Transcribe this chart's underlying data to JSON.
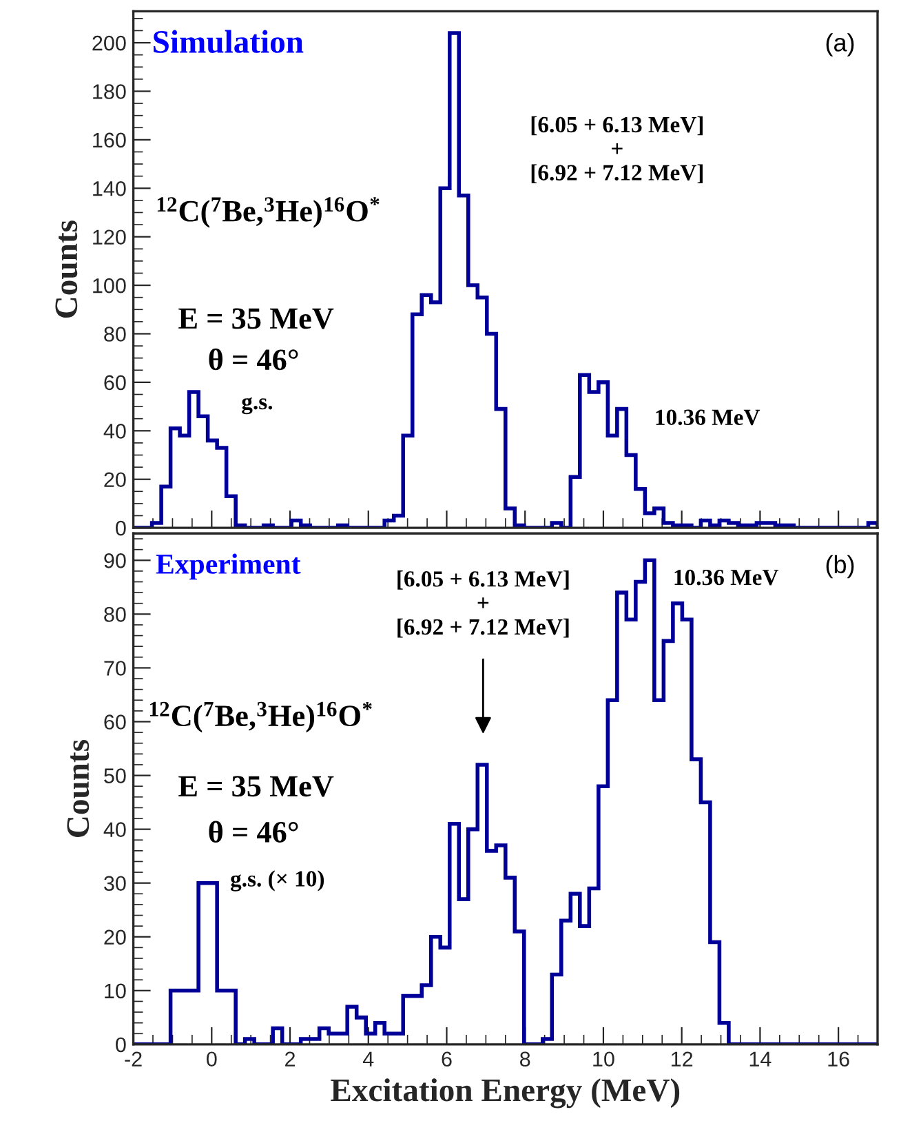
{
  "chart_data": [
    {
      "type": "histogram",
      "ylabel": "Counts",
      "bins": [
        -2,
        -1.7625,
        -1.525,
        -1.2875,
        -1.05,
        -0.8125,
        -0.575,
        -0.3375,
        -0.1,
        0.1375,
        0.375,
        0.6125,
        0.85,
        1.0875,
        1.325,
        1.5625,
        1.8,
        2.0375,
        2.275,
        2.5125,
        2.75,
        2.9875,
        3.225,
        3.4625,
        3.7,
        3.9375,
        4.175,
        4.4125,
        4.65,
        4.8875,
        5.125,
        5.3625,
        5.6,
        5.8375,
        6.075,
        6.3125,
        6.55,
        6.7875,
        7.025,
        7.2625,
        7.5,
        7.7375,
        7.975,
        8.2125,
        8.45,
        8.6875,
        8.925,
        9.1625,
        9.4,
        9.6375,
        9.875,
        10.1125,
        10.35,
        10.5875,
        10.825,
        11.0625,
        11.3,
        11.5375,
        11.775,
        12.0125,
        12.25,
        12.4875,
        12.725,
        12.9625,
        13.2,
        13.4375,
        13.675,
        13.9125,
        14.15,
        14.3875,
        14.625,
        14.8625,
        15.1,
        15.3375,
        15.575,
        15.8125,
        16.05,
        16.2875,
        16.525,
        16.7625,
        17
      ],
      "values": [
        0,
        0,
        2,
        17,
        41,
        38,
        56,
        46,
        36,
        33,
        13,
        1,
        0,
        0,
        1,
        0,
        0,
        3,
        1,
        0,
        0,
        0,
        1,
        0,
        0,
        0,
        0,
        3,
        5,
        38,
        88,
        96,
        93,
        140,
        204,
        137,
        100,
        95,
        80,
        49,
        8,
        1,
        0,
        0,
        0,
        2,
        0,
        21,
        63,
        56,
        60,
        38,
        49,
        30,
        16,
        6,
        8,
        2,
        1,
        1,
        0,
        3,
        1,
        3,
        2,
        1,
        1,
        2,
        2,
        1,
        1,
        0,
        0,
        0,
        0,
        0,
        0,
        0,
        0,
        2
      ],
      "color": "#000099",
      "xlim": [
        -2,
        17
      ],
      "xticks": [
        -2,
        0,
        2,
        4,
        6,
        8,
        10,
        12,
        14,
        16
      ],
      "ylim": [
        0,
        213
      ],
      "yticks": [
        0,
        20,
        40,
        60,
        80,
        100,
        120,
        140,
        160,
        180,
        200
      ],
      "tick_labels": "y",
      "grid": false,
      "legend": false,
      "annotations": [
        "Simulation",
        "(a)",
        "$^{12}$C($^{7}$Be,$^{3}$He)$^{16}$O$^{*}$",
        "E = 35 MeV",
        "θ = 46°",
        "g.s.",
        "[6.05 + 6.13 MeV]\n+\n[6.92 + 7.12 MeV]",
        "10.36 MeV"
      ]
    },
    {
      "type": "histogram",
      "ylabel": "Counts",
      "xlabel": "Excitation Energy (MeV)",
      "bins": [
        -2,
        -1.7625,
        -1.525,
        -1.2875,
        -1.05,
        -0.8125,
        -0.575,
        -0.3375,
        -0.1,
        0.1375,
        0.375,
        0.6125,
        0.85,
        1.0875,
        1.325,
        1.5625,
        1.8,
        2.0375,
        2.275,
        2.5125,
        2.75,
        2.9875,
        3.225,
        3.4625,
        3.7,
        3.9375,
        4.175,
        4.4125,
        4.65,
        4.8875,
        5.125,
        5.3625,
        5.6,
        5.8375,
        6.075,
        6.3125,
        6.55,
        6.7875,
        7.025,
        7.2625,
        7.5,
        7.7375,
        7.975,
        8.2125,
        8.45,
        8.6875,
        8.925,
        9.1625,
        9.4,
        9.6375,
        9.875,
        10.1125,
        10.35,
        10.5875,
        10.825,
        11.0625,
        11.3,
        11.5375,
        11.775,
        12.0125,
        12.25,
        12.4875,
        12.725,
        12.9625,
        13.2,
        13.4375,
        13.675,
        13.9125,
        14.15,
        14.3875,
        14.625,
        14.8625,
        15.1,
        15.3375,
        15.575,
        15.8125,
        16.05,
        16.2875,
        16.525,
        16.7625,
        17
      ],
      "values": [
        0,
        0,
        0,
        0,
        10,
        10,
        10,
        30,
        30,
        10,
        10,
        0,
        1,
        0,
        0,
        3,
        0,
        0,
        1,
        1,
        3,
        2,
        2,
        7,
        5,
        2,
        4,
        2,
        2,
        9,
        9,
        11,
        20,
        18,
        41,
        27,
        40,
        52,
        36,
        37,
        31,
        21,
        0,
        0,
        1,
        13,
        23,
        28,
        22,
        29,
        48,
        64,
        84,
        79,
        86,
        90,
        64,
        75,
        82,
        79,
        53,
        45,
        19,
        4,
        0,
        0,
        0,
        0,
        0,
        0,
        0,
        0,
        0,
        0,
        0,
        0,
        0,
        0,
        0,
        0
      ],
      "color": "#000099",
      "xlim": [
        -2,
        17
      ],
      "xticks": [
        -2,
        0,
        2,
        4,
        6,
        8,
        10,
        12,
        14,
        16
      ],
      "ylim": [
        0,
        95
      ],
      "yticks": [
        0,
        10,
        20,
        30,
        40,
        50,
        60,
        70,
        80,
        90
      ],
      "grid": false,
      "legend": false,
      "annotations": [
        "Experiment",
        "(b)",
        "$^{12}$C($^{7}$Be,$^{3}$He)$^{16}$O$^{*}$",
        "E = 35 MeV",
        "θ = 46°",
        "g.s. (× 10)",
        "[6.05 + 6.13 MeV]\n+\n[6.92 + 7.12 MeV]",
        "10.36 MeV"
      ]
    }
  ]
}
